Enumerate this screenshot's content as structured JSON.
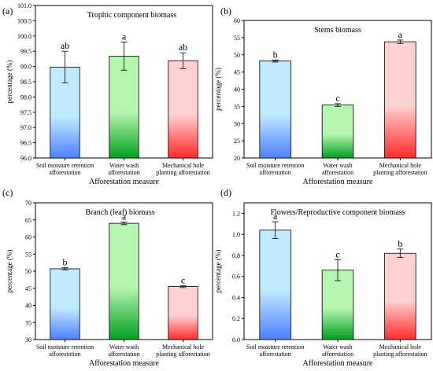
{
  "chart_data": [
    {
      "panel_label": "(a)",
      "type": "bar",
      "title": "Trophic component biomass",
      "xlabel": "Afforestation measure",
      "ylabel": "percentage (%)",
      "categories": [
        [
          "Soil moisture retention",
          "afforestation"
        ],
        [
          "Water wash",
          "afforestation"
        ],
        [
          "Mechanical hole",
          "planting afforestation"
        ]
      ],
      "values": [
        98.98,
        99.34,
        99.19
      ],
      "errors": [
        0.52,
        0.46,
        0.26
      ],
      "letters": [
        "ab",
        "a",
        "ab"
      ],
      "colors": [
        "#4f7fff",
        "#00a020",
        "#ff2a2a"
      ],
      "ylim": [
        96.0,
        101.0
      ],
      "yticks": [
        "96.0",
        "96.5",
        "97.0",
        "97.5",
        "98.0",
        "98.5",
        "99.0",
        "99.5",
        "100.0",
        "100.5",
        "101.0"
      ],
      "grid": false
    },
    {
      "panel_label": "(b)",
      "type": "bar",
      "title": "Stems biomass",
      "xlabel": "Afforestation measure",
      "ylabel": "percentage (%)",
      "categories": [
        [
          "Soil moisture retention",
          "afforestation"
        ],
        [
          "Water wash",
          "afforestation"
        ],
        [
          "Mechanical hole",
          "planting afforestation"
        ]
      ],
      "values": [
        48.2,
        35.4,
        53.8
      ],
      "errors": [
        0.3,
        0.4,
        0.5
      ],
      "letters": [
        "b",
        "c",
        "a"
      ],
      "colors": [
        "#4f7fff",
        "#00a020",
        "#ff2a2a"
      ],
      "ylim": [
        20,
        60
      ],
      "yticks": [
        "20",
        "25",
        "30",
        "35",
        "40",
        "45",
        "50",
        "55",
        "60"
      ],
      "grid": false
    },
    {
      "panel_label": "(c)",
      "type": "bar",
      "title": "Branch (leaf)  biomass",
      "xlabel": "Afforestation measure",
      "ylabel": "percentage (%)",
      "categories": [
        [
          "Soil moisture retention",
          "afforestation"
        ],
        [
          "Water wash",
          "afforestation"
        ],
        [
          "Mechanical hole",
          "planting afforestation"
        ]
      ],
      "values": [
        50.7,
        64.0,
        45.5
      ],
      "errors": [
        0.3,
        0.4,
        0.3
      ],
      "letters": [
        "b",
        "a",
        "c"
      ],
      "colors": [
        "#4f7fff",
        "#00a020",
        "#ff2a2a"
      ],
      "ylim": [
        30,
        70
      ],
      "yticks": [
        "30",
        "35",
        "40",
        "45",
        "50",
        "55",
        "60",
        "65",
        "70"
      ],
      "grid": false
    },
    {
      "panel_label": "(d)",
      "type": "bar",
      "title": "Flowers/Reproductive component biomass",
      "xlabel": "Afforestation measure",
      "ylabel": "percentage (%)",
      "categories": [
        [
          "Soil moisture retention",
          "afforestation"
        ],
        [
          "Water wash",
          "afforestation"
        ],
        [
          "Mechanical hole",
          "planting afforestation"
        ]
      ],
      "values": [
        1.04,
        0.66,
        0.82
      ],
      "errors": [
        0.08,
        0.1,
        0.04
      ],
      "letters": [
        "a",
        "c",
        "b"
      ],
      "colors": [
        "#4f7fff",
        "#00a020",
        "#ff2a2a"
      ],
      "ylim": [
        0,
        1.3
      ],
      "yticks": [
        "0.0",
        "0.2",
        "0.4",
        "0.6",
        "0.8",
        "1.0",
        "1.2"
      ],
      "grid": false
    }
  ]
}
